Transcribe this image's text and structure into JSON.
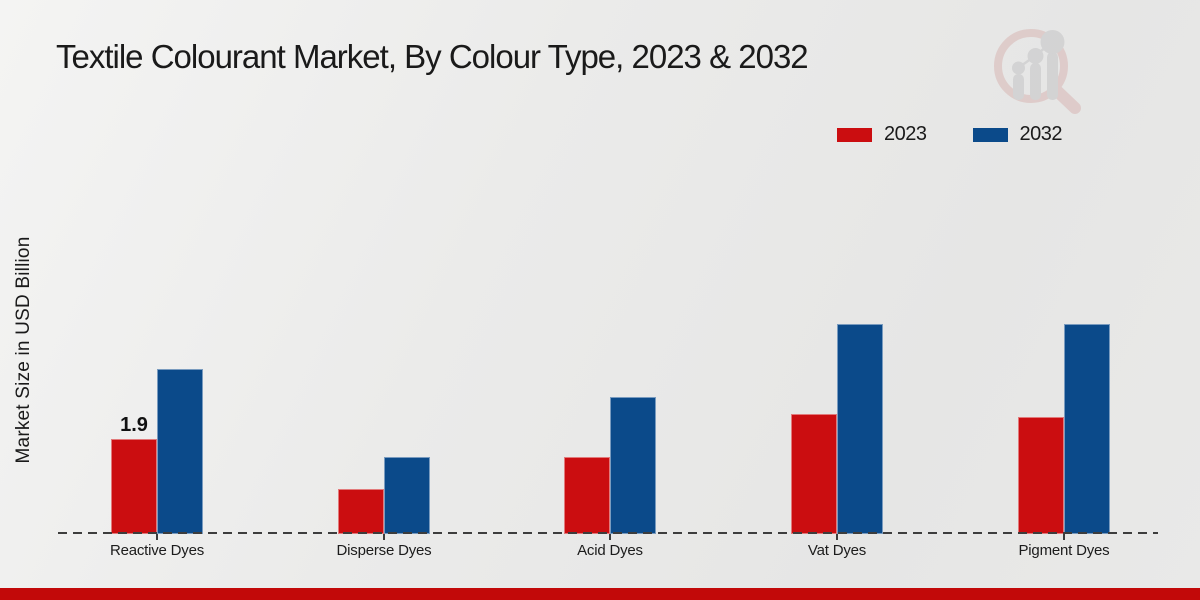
{
  "header": {
    "title": "Textile Colourant Market, By Colour Type, 2023 & 2032"
  },
  "watermark_icon": "magnifier-bar-chart-logo-icon",
  "chart_data": {
    "type": "bar",
    "title": "Textile Colourant Market, By Colour Type, 2023 & 2032",
    "xlabel": "",
    "ylabel": "Market Size in USD Billion",
    "categories": [
      "Reactive Dyes",
      "Disperse Dyes",
      "Acid Dyes",
      "Vat Dyes",
      "Pigment Dyes"
    ],
    "series": [
      {
        "name": "2023",
        "color": "#cb0d10",
        "values": [
          1.9,
          0.9,
          1.55,
          2.4,
          2.35
        ]
      },
      {
        "name": "2032",
        "color": "#0b4a8a",
        "values": [
          3.3,
          1.55,
          2.75,
          4.2,
          4.2
        ]
      }
    ],
    "annotations": [
      {
        "series_index": 0,
        "category_index": 0,
        "text": "1.9"
      }
    ],
    "ylim": [
      0,
      4.7
    ],
    "grid": false,
    "y_axis_ticks_visible": false,
    "legend_position": "top-right",
    "baseline_style": "dashed"
  },
  "colors": {
    "bar_red": "#cb0d10",
    "bar_blue": "#0b4a8a",
    "footer_red": "#c20909",
    "background": "#e9e9e8",
    "baseline": "#3d3d3d"
  }
}
